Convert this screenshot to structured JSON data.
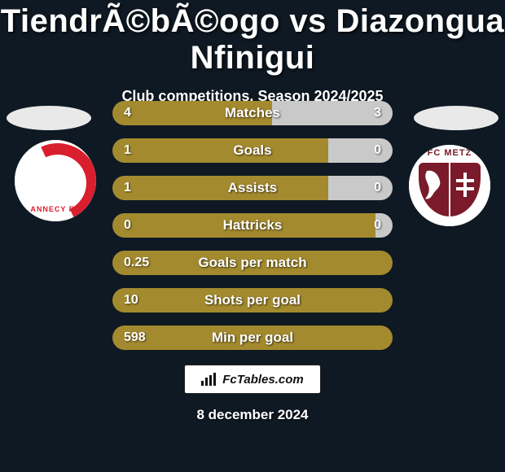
{
  "title": "TiendrÃ©bÃ©ogo vs Diazongua Nfinigui",
  "subtitle": "Club competitions, Season 2024/2025",
  "footer": {
    "site": "FcTables.com",
    "date": "8 december 2024"
  },
  "colors": {
    "background": "#0f1923",
    "bar_left": "#a38a2e",
    "bar_right": "#c9c9c9",
    "text": "#ffffff",
    "annecy_red": "#d91e2e",
    "metz_maroon": "#7a1a2a"
  },
  "clubs": {
    "left": {
      "name": "Annecy FC",
      "logo_text": "ANNECY FC"
    },
    "right": {
      "name": "FC Metz",
      "logo_text": "FC METZ"
    }
  },
  "rows": [
    {
      "label": "Matches",
      "left_text": "4",
      "right_text": "3",
      "left_pct": 57
    },
    {
      "label": "Goals",
      "left_text": "1",
      "right_text": "0",
      "left_pct": 77
    },
    {
      "label": "Assists",
      "left_text": "1",
      "right_text": "0",
      "left_pct": 77
    },
    {
      "label": "Hattricks",
      "left_text": "0",
      "right_text": "0",
      "left_pct": 94
    },
    {
      "label": "Goals per match",
      "left_text": "0.25",
      "right_text": "",
      "left_pct": 100
    },
    {
      "label": "Shots per goal",
      "left_text": "10",
      "right_text": "",
      "left_pct": 100
    },
    {
      "label": "Min per goal",
      "left_text": "598",
      "right_text": "",
      "left_pct": 100
    }
  ]
}
